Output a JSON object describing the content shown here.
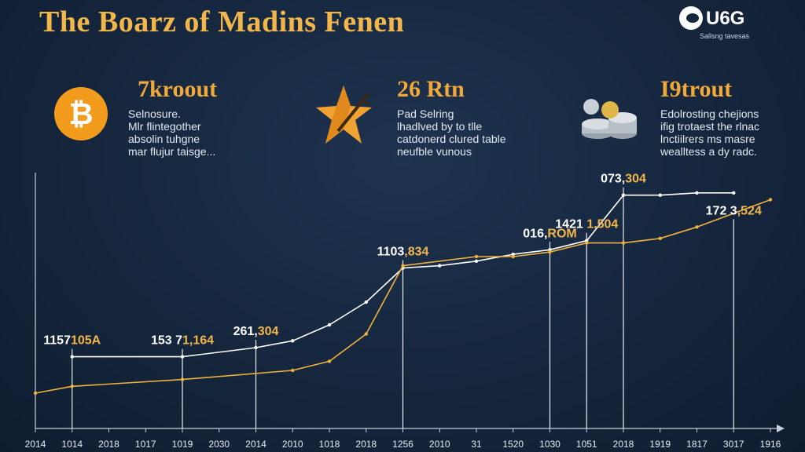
{
  "title": "The Boarz of Madins Fenen",
  "logo": {
    "text": "U6G",
    "subtitle": "Sallsng tavesas"
  },
  "stats": [
    {
      "value": "7kroout",
      "icon": "bitcoin-icon",
      "desc": [
        "Selnosure.",
        "Mlr flintegother",
        "absolin tuhgne",
        "mar flujur taisge..."
      ]
    },
    {
      "value": "26 Rtn",
      "icon": "star-knife-icon",
      "desc": [
        "Pad Selring",
        "lhadlved by to tlle",
        "catdonerd clured table",
        "neufble vunous"
      ]
    },
    {
      "value": "I9trout",
      "icon": "coin-stack-icon",
      "desc": [
        "Edolrosting chejions",
        "ifig trotaest the rlnac",
        "lnctiilrers ms masre",
        "wealltess a dy radc."
      ]
    }
  ],
  "chart_data": {
    "type": "line",
    "title": "",
    "xlabel": "",
    "ylabel": "",
    "x_tick_labels": [
      "2014",
      "1014",
      "2018",
      "1017",
      "1019",
      "2030",
      "2014",
      "2010",
      "1018",
      "2018",
      "1256",
      "2010",
      "31",
      "1520",
      "1030",
      "1051",
      "2018",
      "1919",
      "1817",
      "3017",
      "1916"
    ],
    "y_range": [
      0,
      100
    ],
    "series": [
      {
        "color": "#ffffff",
        "points": [
          [
            1,
            26
          ],
          [
            4,
            26
          ],
          [
            6,
            30
          ],
          [
            7,
            33
          ],
          [
            8,
            40
          ],
          [
            9,
            50
          ],
          [
            10,
            65
          ],
          [
            11,
            66
          ],
          [
            12,
            68
          ],
          [
            13,
            71
          ],
          [
            14,
            73
          ],
          [
            15,
            77
          ],
          [
            16,
            97
          ],
          [
            17,
            97
          ],
          [
            18,
            98
          ],
          [
            19,
            98
          ]
        ]
      },
      {
        "color": "#f0b23e",
        "points": [
          [
            0,
            10
          ],
          [
            1,
            13
          ],
          [
            4,
            16
          ],
          [
            7,
            20
          ],
          [
            8,
            24
          ],
          [
            9,
            36
          ],
          [
            10,
            66
          ],
          [
            12,
            70
          ],
          [
            13,
            70
          ],
          [
            14,
            72
          ],
          [
            15,
            76
          ],
          [
            16,
            76
          ],
          [
            17,
            78
          ],
          [
            18,
            83
          ],
          [
            20,
            95
          ]
        ]
      }
    ],
    "annotations": [
      {
        "text": "1157105A",
        "x": 1,
        "y": 26
      },
      {
        "text": "153 71,164",
        "x": 4,
        "y": 26
      },
      {
        "text": "261,304",
        "x": 6,
        "y": 30
      },
      {
        "text": "1103,834",
        "x": 10,
        "y": 65
      },
      {
        "text": "016,ROM",
        "x": 14,
        "y": 73
      },
      {
        "text": "1421 1,504",
        "x": 15,
        "y": 77
      },
      {
        "text": "073,304",
        "x": 16,
        "y": 97
      },
      {
        "text": "172 3,524",
        "x": 19,
        "y": 83
      }
    ],
    "grid": false
  }
}
